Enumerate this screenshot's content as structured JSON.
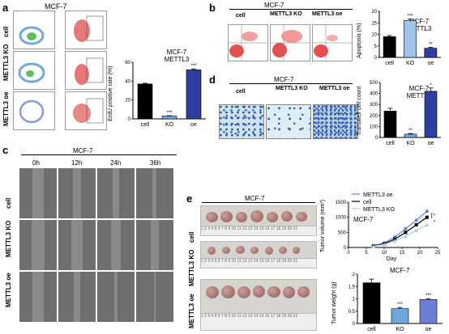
{
  "panels": {
    "a": {
      "label": "a",
      "title": "MCF-7",
      "row_labels": [
        "cell",
        "METTL3 KO",
        "METTL3 oe"
      ],
      "chart": {
        "title_line1": "MCF-7",
        "title_line2": "METTL3",
        "ylabel": "ErdU positive rate (%)"
      }
    },
    "b": {
      "label": "b",
      "title": "MCF-7",
      "col_labels": [
        "cell",
        "METTL3 KO",
        "METTL3 oe"
      ],
      "chart": {
        "title_line1": "MCF-7",
        "title_line2": "METTL3",
        "ylabel": "Apoptosis (%)"
      }
    },
    "c": {
      "label": "c",
      "title": "MCF-7",
      "time_labels": [
        "0h",
        "12h",
        "24h",
        "36h"
      ],
      "row_labels": [
        "cell",
        "METTL3 KO",
        "METTL3 oe"
      ]
    },
    "d": {
      "label": "d",
      "title": "MCF-7",
      "col_labels": [
        "cell",
        "METTL3 KO",
        "METTL3 oe"
      ],
      "chart": {
        "title_line1": "MCF-7",
        "title_line2": "METTL3",
        "ylabel": "Transwell cell count"
      }
    },
    "e": {
      "label": "e",
      "title": "MCF-7",
      "row_labels": [
        "cell",
        "METTL3 KO",
        "METTL3 oe"
      ],
      "line_chart": {
        "inner_title": "MCF-7",
        "xlabel": "Day",
        "ylabel": "Tumor volume (mm³)"
      },
      "bar_chart": {
        "inner_title": "MCF-7",
        "ylabel": "Tumor weight (g)"
      }
    }
  },
  "chart_data": [
    {
      "id": "a-erdu",
      "type": "bar",
      "categories": [
        "cell",
        "KO",
        "oe"
      ],
      "values": [
        37,
        3,
        52
      ],
      "errors": [
        0.8,
        0.4,
        1.0
      ],
      "significance": [
        "",
        "***",
        "***"
      ],
      "colors": [
        "#000000",
        "#6fa8dc",
        "#2f3e9e"
      ],
      "ylim": [
        0,
        60
      ],
      "yticks": [
        0,
        20,
        40,
        60
      ]
    },
    {
      "id": "b-apoptosis",
      "type": "bar",
      "categories": [
        "cell",
        "KO",
        "oe"
      ],
      "values": [
        9,
        16,
        4
      ],
      "errors": [
        0.5,
        0.6,
        0.4
      ],
      "significance": [
        "",
        "***",
        "**"
      ],
      "colors": [
        "#000000",
        "#9fc5e8",
        "#2f3e9e"
      ],
      "ylim": [
        0,
        20
      ],
      "yticks": [
        0,
        5,
        10,
        15,
        20
      ]
    },
    {
      "id": "d-transwell",
      "type": "bar",
      "categories": [
        "cell",
        "KO",
        "oe"
      ],
      "values": [
        240,
        30,
        420
      ],
      "errors": [
        25,
        6,
        30
      ],
      "significance": [
        "",
        "**",
        "*"
      ],
      "colors": [
        "#000000",
        "#6fa8dc",
        "#2f3e9e"
      ],
      "ylim": [
        0,
        500
      ],
      "yticks": [
        0,
        100,
        200,
        300,
        400,
        500
      ]
    },
    {
      "id": "e-volume",
      "type": "line",
      "x": [
        7,
        10,
        13,
        16,
        19,
        22
      ],
      "series": [
        {
          "name": "METTL3 oe",
          "values": [
            60,
            150,
            350,
            620,
            900,
            1200
          ],
          "color": "#6b7fd6",
          "marker": "circle"
        },
        {
          "name": "cell",
          "values": [
            50,
            120,
            280,
            500,
            750,
            1000
          ],
          "color": "#000000",
          "marker": "square"
        },
        {
          "name": "METTL3 KO",
          "values": [
            40,
            100,
            220,
            380,
            560,
            750
          ],
          "color": "#a8cbe8",
          "marker": "triangle"
        }
      ],
      "xlim": [
        0,
        25
      ],
      "xticks": [
        0,
        5,
        10,
        15,
        20,
        25
      ],
      "ylim": [
        0,
        1500
      ],
      "yticks": [
        0,
        500,
        1000,
        1500
      ],
      "significance": [
        "*",
        "*"
      ]
    },
    {
      "id": "e-weight",
      "type": "bar",
      "categories": [
        "cell",
        "KO",
        "oe"
      ],
      "values": [
        1.65,
        0.6,
        0.97
      ],
      "errors": [
        0.15,
        0.05,
        0.04
      ],
      "significance": [
        "",
        "***",
        "***"
      ],
      "colors": [
        "#000000",
        "#6fa8dc",
        "#6b7fd6"
      ],
      "ylim": [
        0,
        2.0
      ],
      "yticks": [
        0.0,
        0.5,
        1.0,
        1.5,
        2.0
      ]
    }
  ]
}
